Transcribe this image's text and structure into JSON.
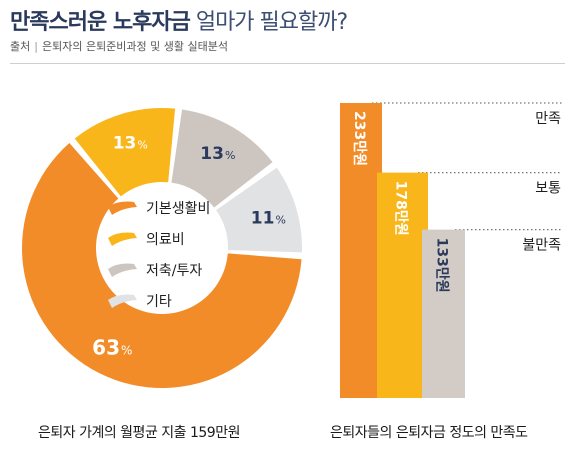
{
  "title": {
    "strong": "만족스러운 노후자금",
    "light": "얼마가 필요할까?"
  },
  "source": {
    "label": "출처",
    "text": "은퇴자의 은퇴준비과정 및 생활 실태분석"
  },
  "chart_data": [
    {
      "type": "pie",
      "caption": "은퇴자 가계의 월평균 지출 159만원",
      "slices": [
        {
          "name": "기본생활비",
          "value": 63,
          "label": "63",
          "unit": "%",
          "color": "#f28c28"
        },
        {
          "name": "의료비",
          "value": 13,
          "label": "13",
          "unit": "%",
          "color": "#f9b61b"
        },
        {
          "name": "저축/투자",
          "value": 13,
          "label": "13",
          "unit": "%",
          "color": "#cdc6c0"
        },
        {
          "name": "기타",
          "value": 11,
          "label": "11",
          "unit": "%",
          "color": "#e1e2e4"
        }
      ]
    },
    {
      "type": "bar",
      "caption": "은퇴자들의 은퇴자금 정도의 만족도",
      "categories": [
        "만족",
        "보통",
        "불만족"
      ],
      "values": [
        233,
        178,
        133
      ],
      "value_labels": [
        "233만원",
        "178만원",
        "133만원"
      ],
      "unit": "만원",
      "colors": [
        "#f28c28",
        "#f9b61b",
        "#d3ccc6"
      ],
      "label_colors": [
        "#ffffff",
        "#ffffff",
        "#2a3a5c"
      ]
    }
  ]
}
